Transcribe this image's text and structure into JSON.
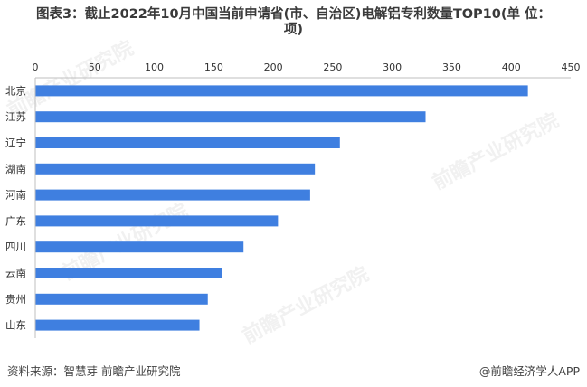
{
  "title_line1": "图表3：截止2022年10月中国当前申请省(市、自治区)电解铝专利数量TOP10(单 位：",
  "title_line2": "项)",
  "source_text": "资料来源：智慧芽 前瞻产业研究院",
  "brand_text": "@前瞻经济学人APP",
  "watermark_text": "前瞻产业研究院",
  "colors": {
    "bar": "#3f7fe0",
    "axis": "#bfbfbf",
    "text": "#333333"
  },
  "chart_data": {
    "type": "bar",
    "orientation": "horizontal",
    "categories": [
      "北京",
      "江苏",
      "辽宁",
      "湖南",
      "河南",
      "广东",
      "四川",
      "云南",
      "贵州",
      "山东"
    ],
    "values": [
      414,
      328,
      256,
      235,
      231,
      204,
      175,
      157,
      145,
      138
    ],
    "xlim": [
      0,
      450
    ],
    "xticks": [
      0,
      50,
      100,
      150,
      200,
      250,
      300,
      350,
      400,
      450
    ],
    "xaxis_position": "top",
    "grid": false,
    "legend": "none"
  }
}
